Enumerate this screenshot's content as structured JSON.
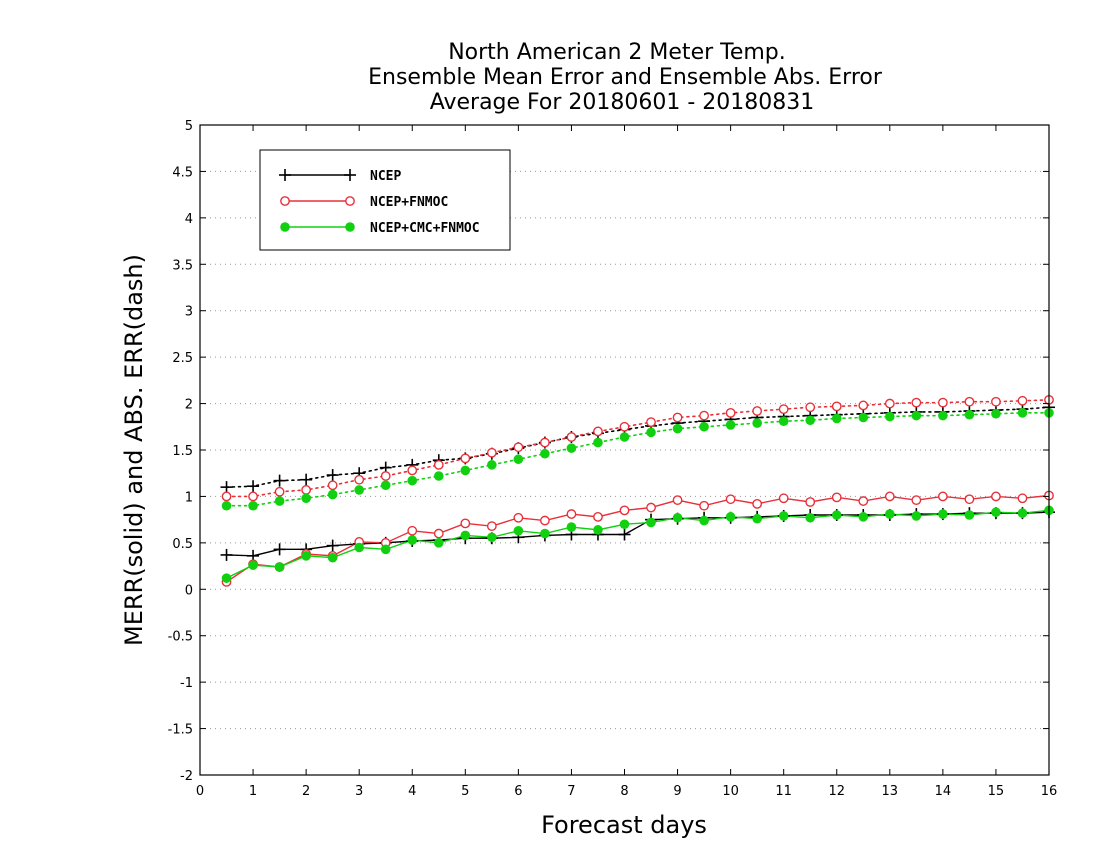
{
  "chart_data": {
    "type": "line",
    "title": [
      "North American 2 Meter Temp.",
      "Ensemble Mean Error and Ensemble Abs. Error",
      "Average For 20180601 - 20180831"
    ],
    "xlabel": "Forecast days",
    "ylabel": "MERR(solid) and ABS. ERR(dash)",
    "xlim": [
      0,
      16
    ],
    "ylim": [
      -2,
      5
    ],
    "xticks": [
      0,
      1,
      2,
      3,
      4,
      5,
      6,
      7,
      8,
      9,
      10,
      11,
      12,
      13,
      14,
      15,
      16
    ],
    "yticks": [
      -2,
      -1.5,
      -1,
      -0.5,
      0,
      0.5,
      1,
      1.5,
      2,
      2.5,
      3,
      3.5,
      4,
      4.5,
      5
    ],
    "ytick_labels": [
      "-2",
      "-1.5",
      "-1",
      "-0.5",
      "0",
      "0.5",
      "1",
      "1.5",
      "2",
      "2.5",
      "3",
      "3.5",
      "4",
      "4.5",
      "5"
    ],
    "grid": true,
    "legend_position": "top-left",
    "x": [
      0.5,
      1,
      1.5,
      2,
      2.5,
      3,
      3.5,
      4,
      4.5,
      5,
      5.5,
      6,
      6.5,
      7,
      7.5,
      8,
      8.5,
      9,
      9.5,
      10,
      10.5,
      11,
      11.5,
      12,
      12.5,
      13,
      13.5,
      14,
      14.5,
      15,
      15.5,
      16
    ],
    "series": [
      {
        "name": "NCEP",
        "color": "#000000",
        "marker": "plus",
        "merr": [
          0.37,
          0.36,
          0.43,
          0.43,
          0.47,
          0.49,
          0.5,
          0.52,
          0.53,
          0.55,
          0.55,
          0.56,
          0.58,
          0.59,
          0.59,
          0.59,
          0.75,
          0.76,
          0.77,
          0.77,
          0.78,
          0.79,
          0.8,
          0.8,
          0.8,
          0.8,
          0.81,
          0.81,
          0.82,
          0.82,
          0.82,
          0.83
        ],
        "abs_err": [
          1.1,
          1.11,
          1.17,
          1.18,
          1.23,
          1.25,
          1.31,
          1.34,
          1.39,
          1.41,
          1.46,
          1.52,
          1.58,
          1.64,
          1.68,
          1.72,
          1.76,
          1.79,
          1.81,
          1.83,
          1.85,
          1.86,
          1.87,
          1.88,
          1.89,
          1.9,
          1.91,
          1.91,
          1.92,
          1.93,
          1.94,
          1.96
        ]
      },
      {
        "name": "NCEP+FNMOC",
        "color": "#e8303a",
        "marker": "open-circle",
        "merr": [
          0.08,
          0.27,
          0.24,
          0.38,
          0.36,
          0.51,
          0.5,
          0.63,
          0.6,
          0.71,
          0.68,
          0.77,
          0.74,
          0.81,
          0.78,
          0.85,
          0.88,
          0.96,
          0.9,
          0.97,
          0.92,
          0.98,
          0.94,
          0.99,
          0.95,
          1.0,
          0.96,
          1.0,
          0.97,
          1.0,
          0.98,
          1.01
        ],
        "abs_err": [
          1.0,
          1.0,
          1.05,
          1.07,
          1.12,
          1.18,
          1.22,
          1.28,
          1.34,
          1.41,
          1.47,
          1.53,
          1.58,
          1.64,
          1.7,
          1.75,
          1.8,
          1.85,
          1.87,
          1.9,
          1.92,
          1.94,
          1.96,
          1.97,
          1.98,
          2.0,
          2.01,
          2.01,
          2.02,
          2.02,
          2.03,
          2.04
        ]
      },
      {
        "name": "NCEP+CMC+FNMOC",
        "color": "#10d010",
        "marker": "filled-circle",
        "merr": [
          0.12,
          0.26,
          0.24,
          0.36,
          0.34,
          0.45,
          0.43,
          0.53,
          0.5,
          0.58,
          0.56,
          0.63,
          0.6,
          0.67,
          0.64,
          0.7,
          0.72,
          0.77,
          0.74,
          0.78,
          0.76,
          0.79,
          0.77,
          0.8,
          0.78,
          0.81,
          0.79,
          0.81,
          0.8,
          0.83,
          0.82,
          0.85
        ],
        "abs_err": [
          0.9,
          0.9,
          0.95,
          0.98,
          1.02,
          1.07,
          1.12,
          1.17,
          1.22,
          1.28,
          1.34,
          1.4,
          1.46,
          1.52,
          1.58,
          1.64,
          1.69,
          1.73,
          1.75,
          1.77,
          1.79,
          1.81,
          1.82,
          1.84,
          1.85,
          1.86,
          1.87,
          1.87,
          1.88,
          1.89,
          1.9,
          1.9
        ]
      }
    ]
  }
}
